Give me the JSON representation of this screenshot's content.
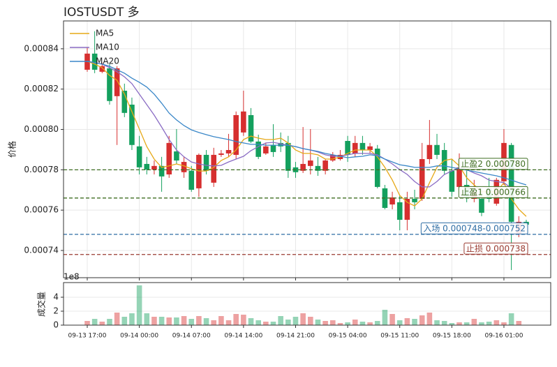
{
  "chart_data": {
    "type": "candlestick",
    "title": "IOSTUSDT  多",
    "y_label": "价格",
    "volume_label": "成交量",
    "volume_offset": "1e8",
    "categories": [
      "09-13 17:00",
      null,
      null,
      null,
      null,
      null,
      null,
      "09-14 00:00",
      null,
      null,
      null,
      null,
      null,
      null,
      "09-14 07:00",
      null,
      null,
      null,
      null,
      null,
      null,
      "09-14 14:00",
      null,
      null,
      null,
      null,
      null,
      null,
      "09-14 21:00",
      null,
      null,
      null,
      null,
      null,
      null,
      "09-15 04:00",
      null,
      null,
      null,
      null,
      null,
      null,
      "09-15 11:00",
      null,
      null,
      null,
      null,
      null,
      null,
      "09-15 18:00",
      null,
      null,
      null,
      null,
      null,
      null,
      "09-16 01:00",
      null,
      null,
      null
    ],
    "open": [
      0.0008296,
      0.0008376,
      0.0008286,
      0.0008303,
      0.0008165,
      0.0008192,
      0.0008123,
      0.0007916,
      0.0007829,
      0.0007801,
      0.0007819,
      0.0007777,
      0.0007891,
      0.0007788,
      0.0007795,
      0.0007708,
      0.0007874,
      0.0007736,
      0.0007874,
      0.0007881,
      0.0007874,
      0.0007985,
      0.0008071,
      0.000794,
      0.0007881,
      0.0007923,
      0.0007933,
      0.0007933,
      0.0007812,
      0.0007795,
      0.0007819,
      0.0007819,
      0.0007795,
      0.0007846,
      0.0007853,
      0.0007943,
      0.0007881,
      0.0007933,
      0.0007898,
      0.0007905,
      0.0007708,
      0.0007628,
      0.0007639,
      0.0007552,
      0.0007656,
      0.0007656,
      0.0007853,
      0.0007923,
      0.0007898,
      0.0007795,
      0.0007715,
      0.0007725,
      0.0007656,
      0.0007656,
      0.0007708,
      0.0007632,
      0.0007743,
      0.0007923,
      0.0007483,
      0.0007542
    ],
    "high": [
      0.0008407,
      0.0008487,
      0.0008331,
      0.0008324,
      0.0008314,
      0.0008227,
      0.0008158,
      0.0007968,
      0.0007864,
      0.0007846,
      0.0007864,
      0.0007968,
      0.0008002,
      0.0007864,
      0.0007819,
      0.0007881,
      0.0007898,
      0.0007909,
      0.0007898,
      0.0007978,
      0.0008089,
      0.0008192,
      0.0008106,
      0.0007974,
      0.0007933,
      0.0008026,
      0.0007985,
      0.0007968,
      0.0007839,
      0.0008012,
      0.0008002,
      0.0007864,
      0.0007853,
      0.0007888,
      0.0007898,
      0.0007968,
      0.0007968,
      0.0007968,
      0.0007933,
      0.0007923,
      0.0007725,
      0.0007691,
      0.0007673,
      0.0007691,
      0.0007701,
      0.0007933,
      0.0008047,
      0.0007978,
      0.0007933,
      0.0007853,
      0.0007881,
      0.0007795,
      0.000775,
      0.0007708,
      0.000776,
      0.000776,
      0.0008002,
      0.0007933,
      0.000757,
      0.0007552
    ],
    "low": [
      0.0008286,
      0.0008279,
      0.0008279,
      0.0008123,
      0.0007923,
      0.0008061,
      0.0007898,
      0.0007777,
      0.0007777,
      0.0007777,
      0.0007691,
      0.000776,
      0.0007829,
      0.000776,
      0.0007691,
      0.0007666,
      0.0007777,
      0.0007715,
      0.0007864,
      0.0007864,
      0.0007853,
      0.0007968,
      0.0007933,
      0.0007853,
      0.0007874,
      0.0007864,
      0.0007888,
      0.000776,
      0.000776,
      0.0007784,
      0.0007777,
      0.000777,
      0.0007777,
      0.0007839,
      0.0007846,
      0.0007839,
      0.0007864,
      0.0007874,
      0.0007881,
      0.0007708,
      0.0007604,
      0.0007604,
      0.00075,
      0.00075,
      0.0007604,
      0.0007646,
      0.0007829,
      0.0007853,
      0.0007777,
      0.0007666,
      0.0007708,
      0.0007639,
      0.0007639,
      0.000757,
      0.0007639,
      0.0007622,
      0.0007725,
      0.0007303,
      0.0007466,
      0.0007518
    ],
    "close": [
      0.0008376,
      0.0008296,
      0.0008314,
      0.0008141,
      0.0008303,
      0.0008082,
      0.0007923,
      0.0007812,
      0.0007801,
      0.0007819,
      0.0007767,
      0.0007933,
      0.0007846,
      0.0007839,
      0.0007701,
      0.0007874,
      0.0007795,
      0.0007874,
      0.0007881,
      0.0007898,
      0.0008071,
      0.0008089,
      0.000794,
      0.0007864,
      0.0007916,
      0.0007888,
      0.0007916,
      0.0007795,
      0.0007788,
      0.0007829,
      0.0007846,
      0.0007795,
      0.0007846,
      0.0007874,
      0.0007874,
      0.0007874,
      0.0007933,
      0.0007898,
      0.0007916,
      0.0007715,
      0.0007611,
      0.0007663,
      0.0007552,
      0.0007656,
      0.0007639,
      0.0007853,
      0.0007923,
      0.0007874,
      0.0007795,
      0.0007691,
      0.0007812,
      0.0007666,
      0.0007691,
      0.0007587,
      0.0007656,
      0.000775,
      0.0007933,
      0.0007542,
      0.0007542,
      0.0007528
    ],
    "volume": [
      0.6,
      0.9,
      0.5,
      0.9,
      1.8,
      1.2,
      1.7,
      5.7,
      1.7,
      1.2,
      1.2,
      1.1,
      1.1,
      1.3,
      0.9,
      1.3,
      1.0,
      0.7,
      1.3,
      0.7,
      1.6,
      1.5,
      1.0,
      0.7,
      0.5,
      0.5,
      1.3,
      0.8,
      1.2,
      1.7,
      1.2,
      0.8,
      0.6,
      0.7,
      0.3,
      0.4,
      0.8,
      0.5,
      0.4,
      0.6,
      2.2,
      1.6,
      0.7,
      1.0,
      0.9,
      1.4,
      1.8,
      0.7,
      0.6,
      0.3,
      0.4,
      0.4,
      0.9,
      0.4,
      0.5,
      0.7,
      0.4,
      1.7,
      0.6,
      0.05
    ],
    "up_color": "#d62f2f",
    "down_color": "#14a05e",
    "ma": [
      {
        "name": "MA5",
        "color": "#e6a817",
        "values": [
          0.0008338,
          0.0008324,
          0.0008306,
          0.0008268,
          0.0008244,
          0.0008175,
          0.0008088,
          0.0008002,
          0.0007915,
          0.0007853,
          0.0007812,
          0.0007819,
          0.0007829,
          0.0007819,
          0.0007805,
          0.0007794,
          0.0007794,
          0.0007812,
          0.0007846,
          0.0007864,
          0.0007898,
          0.000795,
          0.0007967,
          0.0007957,
          0.000795,
          0.000795,
          0.0007957,
          0.0007933,
          0.0007898,
          0.0007881,
          0.0007881,
          0.0007874,
          0.0007853,
          0.0007853,
          0.0007864,
          0.0007881,
          0.0007898,
          0.0007898,
          0.0007898,
          0.0007864,
          0.0007812,
          0.0007749,
          0.0007673,
          0.0007639,
          0.0007621,
          0.0007656,
          0.0007736,
          0.0007812,
          0.0007846,
          0.0007853,
          0.0007819,
          0.000776,
          0.0007725,
          0.0007691,
          0.0007691,
          0.0007691,
          0.0007736,
          0.0007656,
          0.0007604,
          0.0007569
        ]
      },
      {
        "name": "MA10",
        "color": "#8a6cc4",
        "values": [
          0.0008338,
          0.0008331,
          0.0008324,
          0.0008306,
          0.0008286,
          0.0008261,
          0.0008227,
          0.0008175,
          0.0008123,
          0.0008071,
          0.0008012,
          0.000795,
          0.0007898,
          0.0007864,
          0.0007839,
          0.0007829,
          0.0007822,
          0.0007819,
          0.0007822,
          0.0007839,
          0.0007853,
          0.0007867,
          0.0007895,
          0.0007915,
          0.0007933,
          0.0007936,
          0.0007929,
          0.0007922,
          0.0007915,
          0.0007905,
          0.0007898,
          0.0007888,
          0.0007874,
          0.0007867,
          0.0007867,
          0.0007874,
          0.0007881,
          0.0007881,
          0.0007881,
          0.0007874,
          0.0007853,
          0.0007829,
          0.0007801,
          0.0007777,
          0.0007742,
          0.0007715,
          0.0007715,
          0.0007742,
          0.0007777,
          0.0007794,
          0.0007812,
          0.0007801,
          0.0007784,
          0.000777,
          0.0007749,
          0.0007742,
          0.0007736,
          0.0007708,
          0.0007691,
          0.0007666
        ]
      },
      {
        "name": "MA20",
        "color": "#3a87c8",
        "values": [
          0.0008338,
          0.0008331,
          0.0008324,
          0.0008313,
          0.0008296,
          0.0008279,
          0.0008254,
          0.0008234,
          0.000821,
          0.0008175,
          0.000813,
          0.0008081,
          0.0008047,
          0.0008019,
          0.0007998,
          0.0007985,
          0.0007974,
          0.0007964,
          0.0007957,
          0.000795,
          0.000794,
          0.0007933,
          0.0007926,
          0.0007926,
          0.0007922,
          0.0007922,
          0.0007922,
          0.0007922,
          0.0007915,
          0.0007905,
          0.0007898,
          0.0007891,
          0.0007881,
          0.0007874,
          0.0007867,
          0.000786,
          0.0007864,
          0.0007867,
          0.0007874,
          0.000787,
          0.0007853,
          0.0007839,
          0.0007825,
          0.0007819,
          0.0007812,
          0.0007812,
          0.0007812,
          0.0007819,
          0.0007819,
          0.0007812,
          0.0007805,
          0.0007798,
          0.0007791,
          0.0007784,
          0.0007777,
          0.000777,
          0.000776,
          0.0007749,
          0.0007736,
          0.0007725
        ]
      }
    ],
    "levels": [
      {
        "label": "止盈2 0.000780",
        "value": 0.00078,
        "color": "#3f6e22"
      },
      {
        "label": "止盈1 0.000766",
        "value": 0.000766,
        "color": "#3f6e22"
      },
      {
        "label": "入场 0.000748-0.000752",
        "value": 0.000748,
        "color": "#2e6da4"
      },
      {
        "label": "止损 0.000738",
        "value": 0.000738,
        "color": "#9a3a30"
      }
    ],
    "ylim": [
      0.0007265,
      0.0008538
    ],
    "yticks": [
      0.00074,
      0.00076,
      0.00078,
      {
        "value": 0.0008,
        "label": "0.00080"
      },
      0.00082,
      0.00084
    ],
    "volume_ylim": [
      0,
      6.1
    ],
    "volume_yticks": [
      0,
      2,
      4
    ],
    "grid": true,
    "legend": "upper left"
  }
}
